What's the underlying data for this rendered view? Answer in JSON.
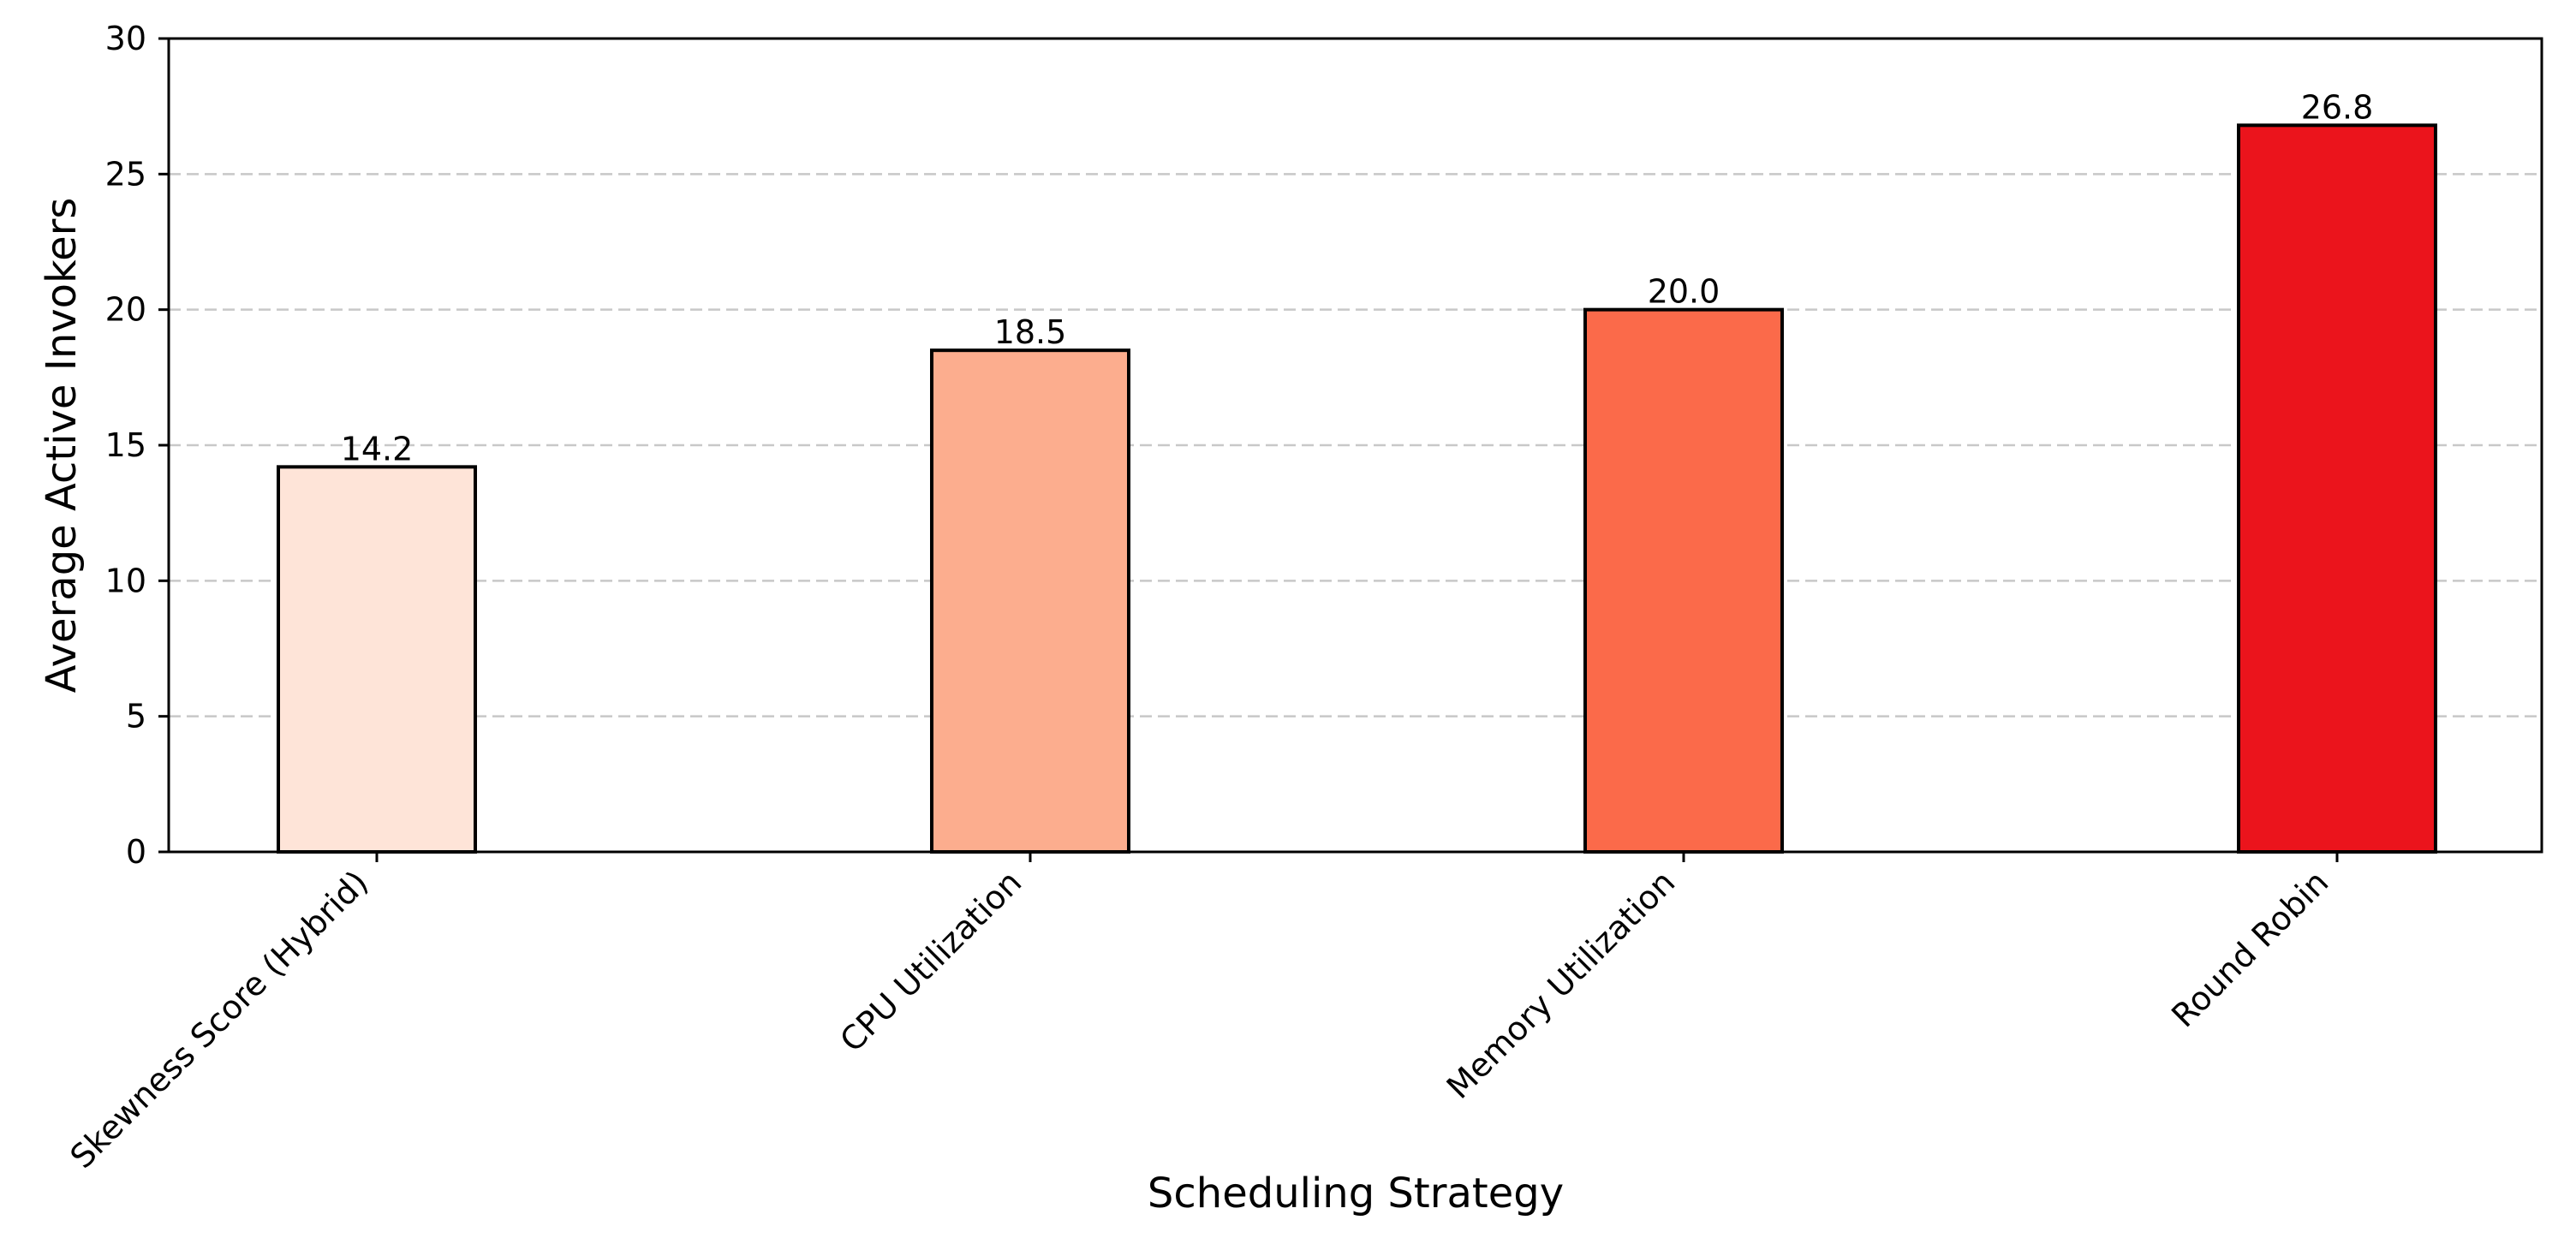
{
  "chart_data": {
    "type": "bar",
    "categories": [
      "Skewness Score (Hybrid)",
      "CPU Utilization",
      "Memory Utilization",
      "Round Robin"
    ],
    "values": [
      14.2,
      18.5,
      20.0,
      26.8
    ],
    "data_labels": [
      "14.2",
      "18.5",
      "20.0",
      "26.8"
    ],
    "bar_colors": [
      "#fee4d8",
      "#fcad8e",
      "#fb6a4a",
      "#eb141c"
    ],
    "edge_color": "#000000",
    "title": "",
    "xlabel": "Scheduling Strategy",
    "ylabel": "Average Active Invokers",
    "ylim": [
      0,
      30
    ],
    "yticks": [
      0,
      5,
      10,
      15,
      20,
      25,
      30
    ],
    "ytick_labels": [
      "0",
      "5",
      "10",
      "15",
      "20",
      "25",
      "30"
    ],
    "grid": "y-dashed",
    "legend": "none"
  }
}
